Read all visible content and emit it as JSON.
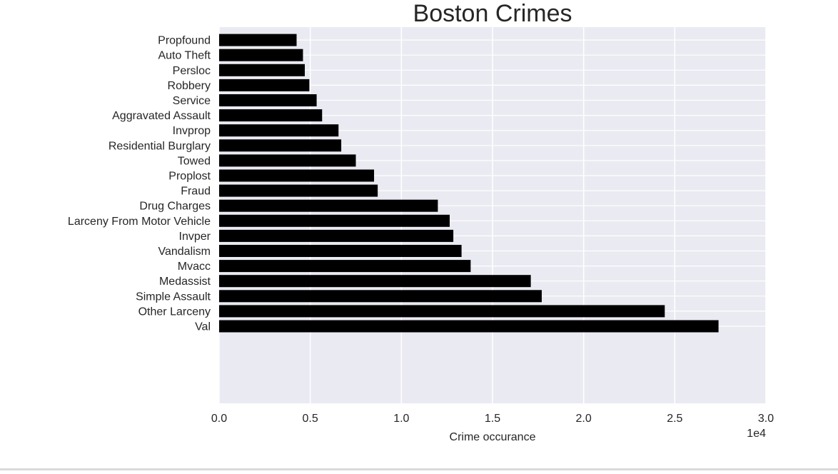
{
  "chart_data": {
    "type": "bar",
    "orientation": "horizontal",
    "title": "Boston Crimes",
    "xlabel": "Crime occurance",
    "ylabel": "",
    "x_scale_label": "1e4",
    "xlim": [
      0,
      30000
    ],
    "x_ticks": [
      0,
      5000,
      10000,
      15000,
      20000,
      25000,
      30000
    ],
    "x_tick_labels": [
      "0.0",
      "0.5",
      "1.0",
      "1.5",
      "2.0",
      "2.5",
      "3.0"
    ],
    "grid": true,
    "bar_color": "#000000",
    "background_color": "#eaeaf2",
    "grid_color": "#ffffff",
    "categories": [
      "Val",
      "Other Larceny",
      "Simple Assault",
      "Medassist",
      "Mvacc",
      "Vandalism",
      "Invper",
      "Larceny From Motor Vehicle",
      "Drug Charges",
      "Fraud",
      "Proplost",
      "Towed",
      "Residential Burglary",
      "Invprop",
      "Aggravated Assault",
      "Service",
      "Robbery",
      "Persloc",
      "Auto Theft",
      "Propfound"
    ],
    "values": [
      27400,
      24450,
      17700,
      17100,
      13800,
      13300,
      12850,
      12650,
      12000,
      8700,
      8500,
      7500,
      6700,
      6550,
      5650,
      5350,
      4950,
      4700,
      4600,
      4250
    ]
  }
}
